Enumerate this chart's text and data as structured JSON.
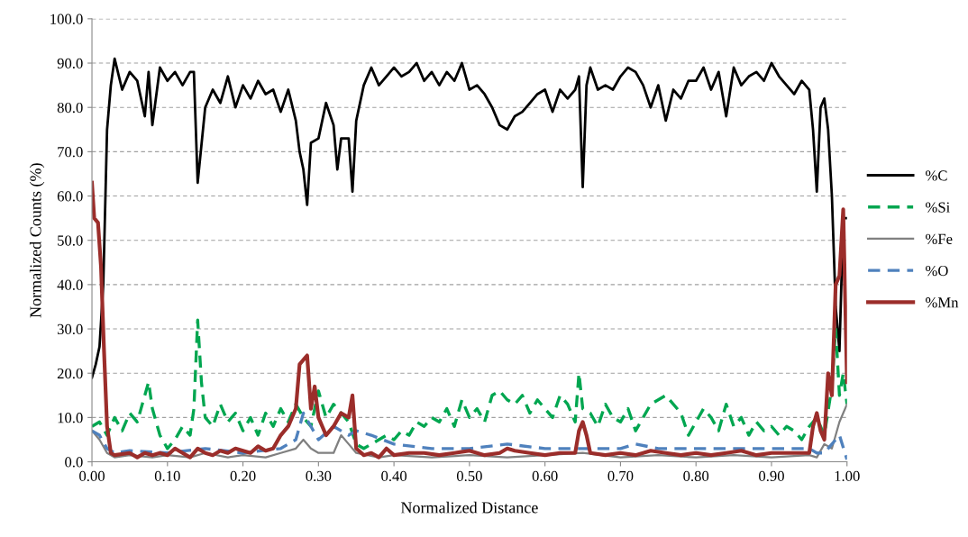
{
  "chart_data": {
    "type": "line",
    "xlabel": "Normalized Distance",
    "ylabel": "Normalized Counts (%)",
    "xlim": [
      0,
      1
    ],
    "ylim": [
      0,
      100
    ],
    "xticks": [
      {
        "value": 0,
        "label": "0.00"
      },
      {
        "value": 0.1,
        "label": "0.10"
      },
      {
        "value": 0.2,
        "label": "0.20"
      },
      {
        "value": 0.3,
        "label": "0.30"
      },
      {
        "value": 0.4,
        "label": "0.40"
      },
      {
        "value": 0.5,
        "label": "0.50"
      },
      {
        "value": 0.6,
        "label": "0.60"
      },
      {
        "value": 0.7,
        "label": "0.70"
      },
      {
        "value": 0.8,
        "label": "0.80"
      },
      {
        "value": 0.9,
        "label": "0.90"
      },
      {
        "value": 1,
        "label": "1.00"
      }
    ],
    "yticks": [
      {
        "value": 0,
        "label": "0.0"
      },
      {
        "value": 10,
        "label": "10.0"
      },
      {
        "value": 20,
        "label": "20.0"
      },
      {
        "value": 30,
        "label": "30.0"
      },
      {
        "value": 40,
        "label": "40.0"
      },
      {
        "value": 50,
        "label": "50.0"
      },
      {
        "value": 60,
        "label": "60.0"
      },
      {
        "value": 70,
        "label": "70.0"
      },
      {
        "value": 80,
        "label": "80.0"
      },
      {
        "value": 90,
        "label": "90.0"
      },
      {
        "value": 100,
        "label": "100.0"
      }
    ],
    "grid": "y",
    "legend": "right",
    "marker": "none",
    "series": [
      {
        "name": "%C",
        "color": "#000000",
        "line_style": "solid",
        "x": [
          0,
          0.005,
          0.01,
          0.015,
          0.02,
          0.025,
          0.03,
          0.04,
          0.05,
          0.06,
          0.07,
          0.075,
          0.08,
          0.09,
          0.1,
          0.11,
          0.12,
          0.13,
          0.135,
          0.14,
          0.15,
          0.16,
          0.17,
          0.18,
          0.19,
          0.2,
          0.21,
          0.22,
          0.23,
          0.24,
          0.25,
          0.26,
          0.27,
          0.275,
          0.28,
          0.285,
          0.29,
          0.3,
          0.31,
          0.32,
          0.325,
          0.33,
          0.34,
          0.345,
          0.35,
          0.36,
          0.37,
          0.38,
          0.39,
          0.4,
          0.41,
          0.42,
          0.43,
          0.44,
          0.45,
          0.46,
          0.47,
          0.48,
          0.49,
          0.5,
          0.51,
          0.52,
          0.53,
          0.54,
          0.55,
          0.56,
          0.57,
          0.58,
          0.59,
          0.6,
          0.61,
          0.62,
          0.63,
          0.64,
          0.645,
          0.65,
          0.655,
          0.66,
          0.67,
          0.68,
          0.69,
          0.7,
          0.71,
          0.72,
          0.73,
          0.74,
          0.75,
          0.76,
          0.77,
          0.78,
          0.79,
          0.8,
          0.81,
          0.82,
          0.83,
          0.84,
          0.85,
          0.86,
          0.87,
          0.88,
          0.89,
          0.9,
          0.91,
          0.92,
          0.93,
          0.94,
          0.95,
          0.955,
          0.96,
          0.965,
          0.97,
          0.975,
          0.98,
          0.985,
          0.99,
          0.995,
          1
        ],
        "values": [
          19,
          22,
          26,
          40,
          75,
          85,
          91,
          84,
          88,
          86,
          78,
          88,
          76,
          89,
          86,
          88,
          85,
          88,
          88,
          63,
          80,
          84,
          81,
          87,
          80,
          85,
          82,
          86,
          83,
          84,
          79,
          84,
          77,
          70,
          66,
          58,
          72,
          73,
          81,
          76,
          66,
          73,
          73,
          61,
          77,
          85,
          89,
          85,
          87,
          89,
          87,
          88,
          90,
          86,
          88,
          85,
          88,
          86,
          90,
          84,
          85,
          83,
          80,
          76,
          75,
          78,
          79,
          81,
          83,
          84,
          79,
          84,
          82,
          84,
          87,
          62,
          85,
          89,
          84,
          85,
          84,
          87,
          89,
          88,
          85,
          80,
          85,
          77,
          84,
          82,
          86,
          86,
          89,
          84,
          88,
          78,
          89,
          85,
          87,
          88,
          86,
          90,
          87,
          85,
          83,
          86,
          84,
          75,
          61,
          80,
          82,
          75,
          60,
          35,
          25,
          55,
          55
        ]
      },
      {
        "name": "%Si",
        "color": "#00a650",
        "line_style": "dashed",
        "x": [
          0,
          0.01,
          0.02,
          0.03,
          0.04,
          0.05,
          0.06,
          0.07,
          0.075,
          0.08,
          0.09,
          0.1,
          0.11,
          0.12,
          0.13,
          0.135,
          0.14,
          0.145,
          0.15,
          0.16,
          0.17,
          0.18,
          0.19,
          0.2,
          0.21,
          0.22,
          0.23,
          0.24,
          0.25,
          0.26,
          0.27,
          0.28,
          0.29,
          0.3,
          0.31,
          0.32,
          0.33,
          0.34,
          0.35,
          0.36,
          0.37,
          0.38,
          0.39,
          0.4,
          0.41,
          0.42,
          0.43,
          0.44,
          0.45,
          0.46,
          0.47,
          0.48,
          0.49,
          0.5,
          0.51,
          0.52,
          0.53,
          0.54,
          0.55,
          0.56,
          0.57,
          0.58,
          0.59,
          0.6,
          0.61,
          0.62,
          0.63,
          0.64,
          0.645,
          0.65,
          0.66,
          0.67,
          0.68,
          0.69,
          0.7,
          0.71,
          0.72,
          0.73,
          0.74,
          0.75,
          0.76,
          0.77,
          0.78,
          0.79,
          0.8,
          0.81,
          0.82,
          0.83,
          0.84,
          0.85,
          0.86,
          0.87,
          0.88,
          0.89,
          0.9,
          0.91,
          0.92,
          0.93,
          0.94,
          0.95,
          0.96,
          0.97,
          0.98,
          0.985,
          0.99,
          0.995,
          1
        ],
        "values": [
          8,
          9,
          6,
          10,
          7,
          11,
          9,
          15,
          18,
          12,
          6,
          3,
          5,
          8,
          6,
          12,
          32,
          18,
          10,
          8,
          13,
          9,
          11,
          7,
          10,
          6,
          11,
          8,
          12,
          9,
          13,
          10,
          8,
          16,
          10,
          13,
          11,
          9,
          4,
          3,
          4,
          5,
          6,
          5,
          7,
          6,
          9,
          8,
          10,
          9,
          12,
          8,
          14,
          10,
          12,
          9,
          15,
          16,
          14,
          13,
          15,
          11,
          14,
          12,
          10,
          15,
          13,
          9,
          20,
          12,
          11,
          8,
          13,
          10,
          9,
          12,
          7,
          10,
          13,
          14,
          15,
          13,
          11,
          6,
          9,
          12,
          10,
          7,
          13,
          8,
          10,
          6,
          9,
          7,
          8,
          6,
          8,
          7,
          5,
          8,
          10,
          6,
          17,
          30,
          15,
          20,
          13
        ]
      },
      {
        "name": "%Fe",
        "color": "#808080",
        "line_style": "solid",
        "x": [
          0,
          0.01,
          0.02,
          0.03,
          0.05,
          0.08,
          0.1,
          0.13,
          0.15,
          0.18,
          0.2,
          0.23,
          0.25,
          0.27,
          0.28,
          0.29,
          0.3,
          0.32,
          0.33,
          0.34,
          0.35,
          0.38,
          0.4,
          0.45,
          0.5,
          0.55,
          0.6,
          0.65,
          0.7,
          0.75,
          0.8,
          0.85,
          0.9,
          0.95,
          0.96,
          0.97,
          0.98,
          0.99,
          1
        ],
        "values": [
          7,
          5,
          2,
          1,
          1.5,
          1,
          1.5,
          1,
          2,
          1,
          1.5,
          1,
          2,
          3,
          5,
          3,
          2,
          2,
          6,
          4,
          2,
          1,
          1.5,
          1,
          1.5,
          1,
          1.5,
          2,
          1,
          1.5,
          1,
          1.5,
          1,
          1.5,
          1,
          4,
          3,
          9,
          13
        ]
      },
      {
        "name": "%O",
        "color": "#4f81bd",
        "line_style": "dashed",
        "x": [
          0,
          0.01,
          0.02,
          0.03,
          0.05,
          0.1,
          0.15,
          0.2,
          0.25,
          0.27,
          0.28,
          0.29,
          0.3,
          0.32,
          0.34,
          0.35,
          0.37,
          0.4,
          0.45,
          0.5,
          0.55,
          0.6,
          0.65,
          0.7,
          0.72,
          0.75,
          0.8,
          0.85,
          0.9,
          0.95,
          0.96,
          0.97,
          0.98,
          0.99,
          1
        ],
        "values": [
          7,
          6,
          3,
          2,
          2.5,
          2,
          3,
          2,
          3,
          5,
          11,
          8,
          5,
          8,
          6,
          7,
          6,
          4,
          3,
          3,
          4,
          3,
          3,
          3,
          4,
          3,
          3,
          3,
          3,
          3,
          2,
          2,
          4,
          6,
          0.5
        ]
      },
      {
        "name": "%Mn",
        "color": "#9b2d2a",
        "line_style": "solid",
        "x": [
          0,
          0.003,
          0.008,
          0.012,
          0.016,
          0.02,
          0.025,
          0.03,
          0.05,
          0.06,
          0.07,
          0.08,
          0.09,
          0.1,
          0.11,
          0.12,
          0.13,
          0.14,
          0.15,
          0.16,
          0.17,
          0.18,
          0.19,
          0.2,
          0.21,
          0.22,
          0.23,
          0.24,
          0.25,
          0.26,
          0.27,
          0.275,
          0.28,
          0.285,
          0.29,
          0.295,
          0.3,
          0.31,
          0.32,
          0.33,
          0.34,
          0.345,
          0.35,
          0.36,
          0.37,
          0.38,
          0.39,
          0.4,
          0.42,
          0.44,
          0.46,
          0.48,
          0.5,
          0.52,
          0.54,
          0.55,
          0.56,
          0.58,
          0.6,
          0.62,
          0.64,
          0.645,
          0.65,
          0.655,
          0.66,
          0.68,
          0.7,
          0.72,
          0.74,
          0.76,
          0.78,
          0.8,
          0.82,
          0.84,
          0.86,
          0.88,
          0.9,
          0.92,
          0.94,
          0.95,
          0.955,
          0.96,
          0.965,
          0.97,
          0.975,
          0.98,
          0.985,
          0.99,
          0.995,
          1
        ],
        "values": [
          63,
          55,
          54,
          44,
          25,
          8,
          2,
          1.5,
          2,
          1,
          2,
          1.5,
          2,
          1.5,
          3,
          2,
          1,
          3,
          2,
          1.5,
          2.5,
          2,
          3,
          2.5,
          2,
          3.5,
          2.5,
          3,
          6,
          8,
          12,
          22,
          23,
          24,
          12,
          17,
          10,
          6,
          8,
          11,
          10,
          15,
          3,
          1.5,
          2,
          1,
          3,
          1.5,
          2,
          2,
          1.5,
          2,
          2.5,
          1.5,
          2,
          3,
          2.5,
          2,
          1.5,
          2,
          2,
          7,
          9,
          6,
          2,
          1.5,
          2,
          1.5,
          2.5,
          2,
          1.5,
          2,
          1.5,
          2,
          2.5,
          1.5,
          2,
          2,
          2,
          2,
          8,
          11,
          7,
          5,
          20,
          15,
          40,
          42,
          57,
          18
        ]
      }
    ]
  }
}
